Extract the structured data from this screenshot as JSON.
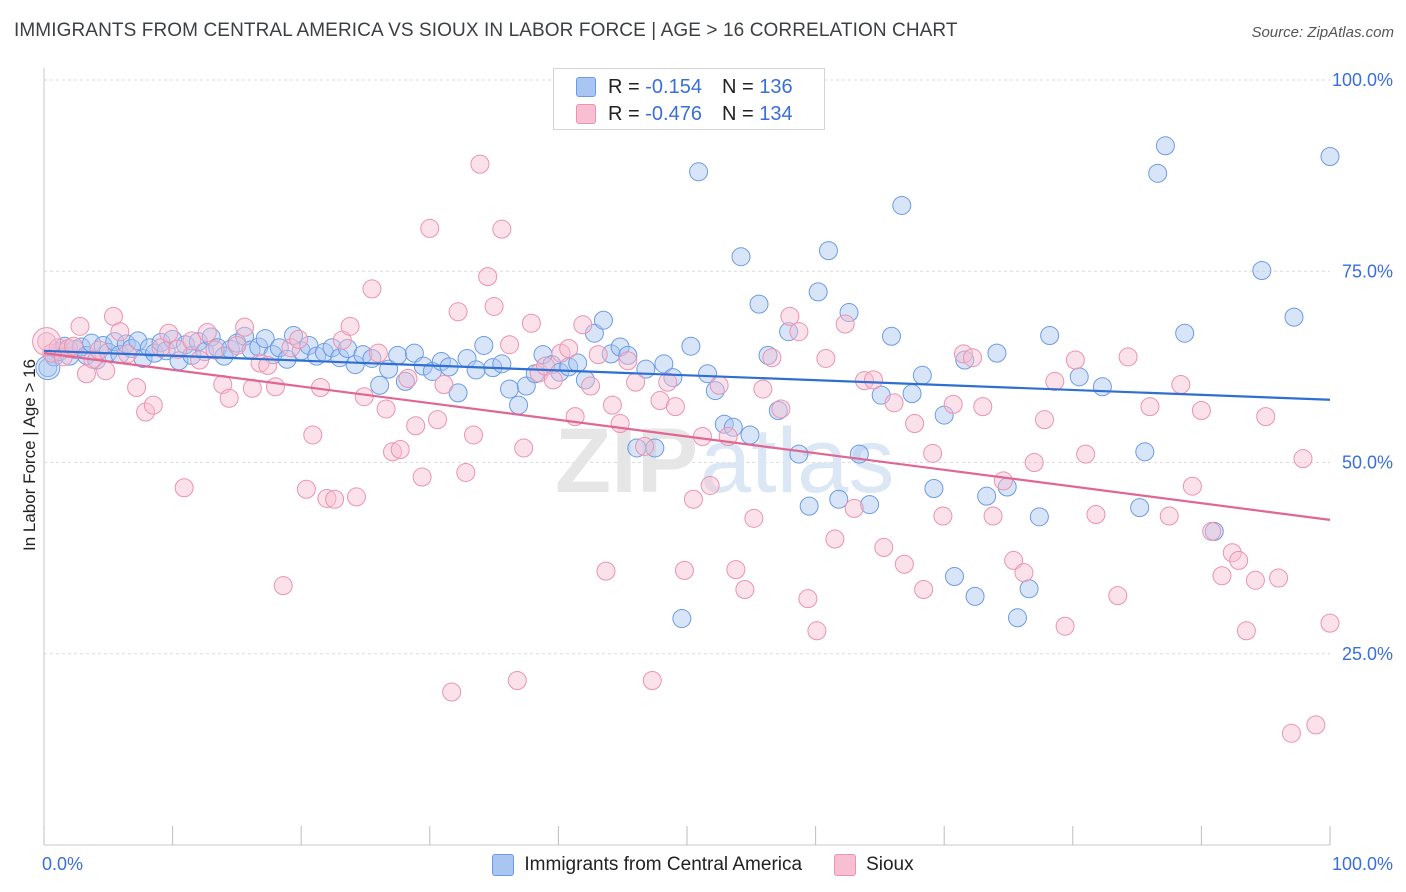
{
  "header": {
    "title": "IMMIGRANTS FROM CENTRAL AMERICA VS SIOUX IN LABOR FORCE | AGE > 16 CORRELATION CHART",
    "source": "Source: ZipAtlas.com"
  },
  "watermark": {
    "part1": "ZIP",
    "part2": "atlas"
  },
  "legend": {
    "r_label": "R =",
    "n_label": "N =",
    "series": [
      {
        "r": "-0.154",
        "n": "136"
      },
      {
        "r": "-0.476",
        "n": "134"
      }
    ]
  },
  "chart_data": {
    "type": "scatter",
    "title": "IMMIGRANTS FROM CENTRAL AMERICA VS SIOUX IN LABOR FORCE | AGE > 16 CORRELATION CHART",
    "xlabel": "",
    "ylabel": "In Labor Force | Age > 16",
    "xlim": [
      0,
      100
    ],
    "ylim": [
      0,
      100
    ],
    "x_tick_labels": [
      "0.0%",
      "100.0%"
    ],
    "y_ticks": [
      25,
      50,
      75,
      100
    ],
    "y_tick_labels": [
      "25.0%",
      "50.0%",
      "75.0%",
      "100.0%"
    ],
    "grid": true,
    "legend_position": "bottom",
    "series": [
      {
        "name": "Immigrants from Central America",
        "color": "#6c9be6",
        "fill": "#a9c6f2",
        "line_color": "#2f6fd1",
        "trend": {
          "x": [
            0,
            100
          ],
          "y": [
            64.6,
            58.2
          ]
        },
        "points": [
          [
            0.3,
            62.4
          ],
          [
            0.8,
            63.8
          ],
          [
            1.2,
            64.5
          ],
          [
            1.6,
            65.2
          ],
          [
            2.0,
            63.9
          ],
          [
            2.4,
            64.8
          ],
          [
            2.9,
            65.1
          ],
          [
            3.3,
            64.0
          ],
          [
            3.7,
            65.6
          ],
          [
            4.1,
            63.4
          ],
          [
            4.6,
            65.3
          ],
          [
            5.0,
            64.4
          ],
          [
            5.5,
            65.8
          ],
          [
            5.9,
            64.1
          ],
          [
            6.4,
            65.5
          ],
          [
            6.8,
            64.9
          ],
          [
            7.3,
            65.9
          ],
          [
            7.7,
            63.6
          ],
          [
            8.2,
            65.0
          ],
          [
            8.6,
            64.3
          ],
          [
            9.1,
            65.7
          ],
          [
            9.5,
            64.6
          ],
          [
            10.0,
            66.1
          ],
          [
            10.5,
            63.3
          ],
          [
            11.0,
            65.4
          ],
          [
            11.5,
            64.0
          ],
          [
            12.0,
            65.8
          ],
          [
            12.5,
            64.5
          ],
          [
            13.0,
            66.4
          ],
          [
            13.5,
            65.0
          ],
          [
            14.0,
            63.9
          ],
          [
            14.5,
            64.8
          ],
          [
            15.0,
            65.6
          ],
          [
            15.6,
            66.5
          ],
          [
            16.1,
            64.7
          ],
          [
            16.7,
            65.1
          ],
          [
            17.2,
            66.2
          ],
          [
            17.8,
            64.1
          ],
          [
            18.3,
            65.0
          ],
          [
            18.9,
            63.5
          ],
          [
            19.4,
            66.6
          ],
          [
            20.0,
            64.6
          ],
          [
            20.6,
            65.3
          ],
          [
            21.2,
            63.9
          ],
          [
            21.8,
            64.4
          ],
          [
            22.4,
            65.0
          ],
          [
            23.0,
            63.7
          ],
          [
            23.6,
            64.9
          ],
          [
            24.2,
            62.8
          ],
          [
            24.8,
            64.1
          ],
          [
            25.5,
            63.6
          ],
          [
            26.1,
            60.1
          ],
          [
            26.8,
            62.2
          ],
          [
            27.5,
            64.0
          ],
          [
            28.1,
            60.6
          ],
          [
            28.8,
            64.3
          ],
          [
            29.5,
            62.6
          ],
          [
            30.2,
            61.9
          ],
          [
            30.9,
            63.2
          ],
          [
            31.5,
            62.5
          ],
          [
            32.2,
            59.1
          ],
          [
            32.9,
            63.6
          ],
          [
            33.6,
            62.1
          ],
          [
            34.2,
            65.3
          ],
          [
            34.9,
            62.4
          ],
          [
            35.6,
            62.9
          ],
          [
            36.2,
            59.6
          ],
          [
            36.9,
            57.5
          ],
          [
            37.5,
            60.0
          ],
          [
            38.2,
            61.6
          ],
          [
            38.8,
            64.1
          ],
          [
            39.5,
            62.8
          ],
          [
            40.1,
            61.8
          ],
          [
            40.8,
            62.5
          ],
          [
            41.5,
            63.0
          ],
          [
            42.1,
            60.8
          ],
          [
            42.8,
            66.9
          ],
          [
            43.5,
            68.6
          ],
          [
            44.1,
            64.2
          ],
          [
            44.8,
            65.1
          ],
          [
            45.4,
            64.0
          ],
          [
            46.1,
            51.9
          ],
          [
            46.8,
            62.2
          ],
          [
            47.5,
            51.9
          ],
          [
            48.2,
            62.9
          ],
          [
            48.9,
            61.1
          ],
          [
            49.6,
            29.6
          ],
          [
            50.3,
            65.2
          ],
          [
            50.9,
            88.0
          ],
          [
            51.6,
            61.6
          ],
          [
            52.2,
            59.4
          ],
          [
            52.9,
            55.0
          ],
          [
            53.6,
            54.6
          ],
          [
            54.2,
            76.9
          ],
          [
            54.9,
            53.6
          ],
          [
            55.6,
            70.7
          ],
          [
            56.3,
            64.0
          ],
          [
            57.1,
            56.8
          ],
          [
            57.9,
            67.1
          ],
          [
            58.7,
            51.1
          ],
          [
            59.5,
            44.3
          ],
          [
            60.2,
            72.3
          ],
          [
            61.0,
            77.7
          ],
          [
            61.8,
            45.2
          ],
          [
            62.6,
            69.6
          ],
          [
            63.4,
            51.1
          ],
          [
            64.2,
            44.5
          ],
          [
            65.1,
            58.8
          ],
          [
            65.9,
            66.5
          ],
          [
            66.7,
            83.6
          ],
          [
            67.5,
            59.0
          ],
          [
            68.3,
            61.4
          ],
          [
            69.2,
            46.6
          ],
          [
            70.0,
            56.2
          ],
          [
            70.8,
            35.1
          ],
          [
            71.6,
            63.4
          ],
          [
            72.4,
            32.5
          ],
          [
            73.3,
            45.6
          ],
          [
            74.1,
            64.3
          ],
          [
            74.9,
            46.8
          ],
          [
            75.7,
            29.7
          ],
          [
            76.6,
            33.5
          ],
          [
            77.4,
            42.9
          ],
          [
            78.2,
            66.6
          ],
          [
            80.5,
            61.2
          ],
          [
            82.3,
            59.9
          ],
          [
            85.2,
            44.1
          ],
          [
            85.6,
            51.4
          ],
          [
            86.6,
            87.8
          ],
          [
            87.2,
            91.4
          ],
          [
            88.7,
            66.9
          ],
          [
            91.0,
            41.0
          ],
          [
            94.7,
            75.1
          ],
          [
            97.2,
            69.0
          ],
          [
            100.0,
            90.0
          ]
        ]
      },
      {
        "name": "Sioux",
        "color": "#ec93b0",
        "fill": "#f7bfd1",
        "line_color": "#e06694",
        "trend": {
          "x": [
            0,
            100
          ],
          "y": [
            64.3,
            42.5
          ]
        },
        "points": [
          [
            0.2,
            65.8
          ],
          [
            0.6,
            64.3
          ],
          [
            1.1,
            65.0
          ],
          [
            1.5,
            63.8
          ],
          [
            1.9,
            64.9
          ],
          [
            2.3,
            65.2
          ],
          [
            2.8,
            67.8
          ],
          [
            3.3,
            61.6
          ],
          [
            3.8,
            63.5
          ],
          [
            4.3,
            64.7
          ],
          [
            4.8,
            62.0
          ],
          [
            5.4,
            69.1
          ],
          [
            5.9,
            67.1
          ],
          [
            6.5,
            64.2
          ],
          [
            7.2,
            59.8
          ],
          [
            7.9,
            56.6
          ],
          [
            8.5,
            57.5
          ],
          [
            9.1,
            65.0
          ],
          [
            9.7,
            66.9
          ],
          [
            10.4,
            64.8
          ],
          [
            10.9,
            46.7
          ],
          [
            11.5,
            65.9
          ],
          [
            12.1,
            63.4
          ],
          [
            12.7,
            67.0
          ],
          [
            13.3,
            64.7
          ],
          [
            13.9,
            60.2
          ],
          [
            14.4,
            58.4
          ],
          [
            15.0,
            65.3
          ],
          [
            15.6,
            67.7
          ],
          [
            16.2,
            59.7
          ],
          [
            16.8,
            63.0
          ],
          [
            17.4,
            62.7
          ],
          [
            18.0,
            59.9
          ],
          [
            18.6,
            33.9
          ],
          [
            19.2,
            65.0
          ],
          [
            19.8,
            66.1
          ],
          [
            20.4,
            46.5
          ],
          [
            20.9,
            53.6
          ],
          [
            21.5,
            59.8
          ],
          [
            22.0,
            45.3
          ],
          [
            22.6,
            45.2
          ],
          [
            23.2,
            66.0
          ],
          [
            23.8,
            67.8
          ],
          [
            24.3,
            45.5
          ],
          [
            24.9,
            58.6
          ],
          [
            25.5,
            72.7
          ],
          [
            26.0,
            64.3
          ],
          [
            26.6,
            57.0
          ],
          [
            27.1,
            51.4
          ],
          [
            27.7,
            51.7
          ],
          [
            28.3,
            61.0
          ],
          [
            28.9,
            54.8
          ],
          [
            29.4,
            48.1
          ],
          [
            30.0,
            80.6
          ],
          [
            30.6,
            55.6
          ],
          [
            31.1,
            60.2
          ],
          [
            31.7,
            20.0
          ],
          [
            32.2,
            69.7
          ],
          [
            32.8,
            48.7
          ],
          [
            33.4,
            53.6
          ],
          [
            33.9,
            89.0
          ],
          [
            34.5,
            74.3
          ],
          [
            35.0,
            70.4
          ],
          [
            35.6,
            80.5
          ],
          [
            36.2,
            65.4
          ],
          [
            36.8,
            21.5
          ],
          [
            37.3,
            51.9
          ],
          [
            37.9,
            68.2
          ],
          [
            38.5,
            61.7
          ],
          [
            39.0,
            62.6
          ],
          [
            39.6,
            60.8
          ],
          [
            40.2,
            64.3
          ],
          [
            40.8,
            64.9
          ],
          [
            41.3,
            56.0
          ],
          [
            41.9,
            68.0
          ],
          [
            42.5,
            60.0
          ],
          [
            43.1,
            64.1
          ],
          [
            43.7,
            35.8
          ],
          [
            44.2,
            57.5
          ],
          [
            44.8,
            55.1
          ],
          [
            45.4,
            63.3
          ],
          [
            46.0,
            60.5
          ],
          [
            46.7,
            52.1
          ],
          [
            47.3,
            21.5
          ],
          [
            47.9,
            58.1
          ],
          [
            48.5,
            60.5
          ],
          [
            49.1,
            57.3
          ],
          [
            49.8,
            35.9
          ],
          [
            50.5,
            45.2
          ],
          [
            51.2,
            53.4
          ],
          [
            51.8,
            47.0
          ],
          [
            52.5,
            60.1
          ],
          [
            53.2,
            53.4
          ],
          [
            53.8,
            36.0
          ],
          [
            54.5,
            33.4
          ],
          [
            55.2,
            42.7
          ],
          [
            55.9,
            59.6
          ],
          [
            56.6,
            63.7
          ],
          [
            57.3,
            57.0
          ],
          [
            58.0,
            69.1
          ],
          [
            58.7,
            67.1
          ],
          [
            59.4,
            32.2
          ],
          [
            60.1,
            28.0
          ],
          [
            60.8,
            63.6
          ],
          [
            61.5,
            40.0
          ],
          [
            62.3,
            68.1
          ],
          [
            63.0,
            44.0
          ],
          [
            63.8,
            60.7
          ],
          [
            64.5,
            60.8
          ],
          [
            65.3,
            38.9
          ],
          [
            66.1,
            57.8
          ],
          [
            66.9,
            36.7
          ],
          [
            67.7,
            55.1
          ],
          [
            68.4,
            33.4
          ],
          [
            69.1,
            51.2
          ],
          [
            69.9,
            43.0
          ],
          [
            70.7,
            57.6
          ],
          [
            71.5,
            64.2
          ],
          [
            72.2,
            63.7
          ],
          [
            73.0,
            57.3
          ],
          [
            73.8,
            43.0
          ],
          [
            74.6,
            47.6
          ],
          [
            75.4,
            37.2
          ],
          [
            76.2,
            35.6
          ],
          [
            77.0,
            50.0
          ],
          [
            77.8,
            55.6
          ],
          [
            78.6,
            60.6
          ],
          [
            79.4,
            28.6
          ],
          [
            80.2,
            63.4
          ],
          [
            81.0,
            51.1
          ],
          [
            81.8,
            43.2
          ],
          [
            83.5,
            32.6
          ],
          [
            84.3,
            63.8
          ],
          [
            86.0,
            57.3
          ],
          [
            87.5,
            43.0
          ],
          [
            88.4,
            60.2
          ],
          [
            89.3,
            46.9
          ],
          [
            90.0,
            56.8
          ],
          [
            90.8,
            41.0
          ],
          [
            91.6,
            35.2
          ],
          [
            92.4,
            38.2
          ],
          [
            92.9,
            37.2
          ],
          [
            93.5,
            28.0
          ],
          [
            94.2,
            34.6
          ],
          [
            95.0,
            56.0
          ],
          [
            96.0,
            34.9
          ],
          [
            97.0,
            14.6
          ],
          [
            97.9,
            50.5
          ],
          [
            98.9,
            15.7
          ],
          [
            100.0,
            29.0
          ]
        ]
      }
    ]
  }
}
